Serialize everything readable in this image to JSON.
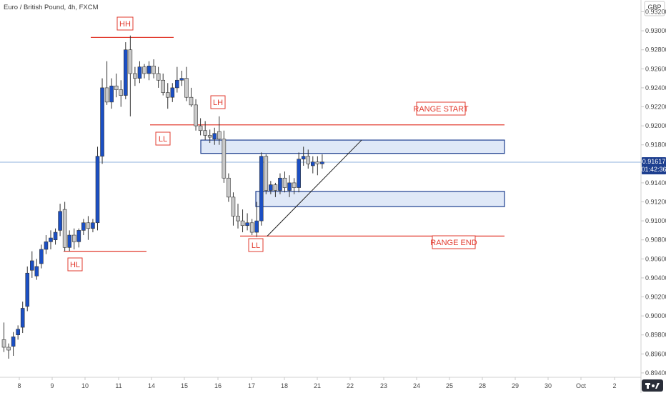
{
  "header": {
    "title": "Euro / British Pound, 4h, FXCM",
    "currency": "GBP"
  },
  "price_label": {
    "price": "0.91617",
    "countdown": "01:42:36"
  },
  "logo": {
    "name": "tradingview-logo-icon"
  },
  "colors": {
    "bull_fill": "#1b4fc4",
    "bear_fill": "#c9c9c9",
    "wick": "#333333",
    "annotation": "#e23b2f",
    "zone_fill": "#dfe8f7",
    "zone_border": "#1e3f8f",
    "price_line": "#8fb0dc",
    "price_tag": "#1e3f8f"
  },
  "chart_data": {
    "type": "candlestick",
    "title": "Euro / British Pound, 4h, FXCM",
    "x_tick_labels": [
      "8",
      "9",
      "10",
      "11",
      "14",
      "15",
      "16",
      "17",
      "18",
      "21",
      "22",
      "23",
      "24",
      "25",
      "28",
      "29",
      "30",
      "Oct",
      "2"
    ],
    "y_tick_labels": [
      "0.89400",
      "0.89600",
      "0.89800",
      "0.90000",
      "0.90200",
      "0.90400",
      "0.90600",
      "0.90800",
      "0.91000",
      "0.91200",
      "0.91400",
      "0.91600",
      "0.91800",
      "0.92000",
      "0.92200",
      "0.92400",
      "0.92600",
      "0.92800",
      "0.93000",
      "0.93200"
    ],
    "ylim": [
      0.893,
      0.933
    ],
    "candles": [
      [
        0.8975,
        0.8993,
        0.8962,
        0.8967
      ],
      [
        0.8967,
        0.8971,
        0.8955,
        0.8964
      ],
      [
        0.8968,
        0.8983,
        0.8958,
        0.8978
      ],
      [
        0.898,
        0.899,
        0.8975,
        0.8986
      ],
      [
        0.8988,
        0.9015,
        0.8982,
        0.9008
      ],
      [
        0.901,
        0.9052,
        0.9005,
        0.9045
      ],
      [
        0.9048,
        0.9068,
        0.904,
        0.9058
      ],
      [
        0.9042,
        0.906,
        0.9038,
        0.9052
      ],
      [
        0.9055,
        0.9075,
        0.905,
        0.907
      ],
      [
        0.907,
        0.9085,
        0.9065,
        0.9078
      ],
      [
        0.9078,
        0.909,
        0.907,
        0.9082
      ],
      [
        0.908,
        0.9092,
        0.9075,
        0.9088
      ],
      [
        0.909,
        0.9118,
        0.9084,
        0.911
      ],
      [
        0.9112,
        0.912,
        0.9068,
        0.9072
      ],
      [
        0.9072,
        0.909,
        0.9068,
        0.9085
      ],
      [
        0.9085,
        0.9092,
        0.907,
        0.9078
      ],
      [
        0.9078,
        0.9092,
        0.9072,
        0.909
      ],
      [
        0.909,
        0.9102,
        0.9085,
        0.9098
      ],
      [
        0.9098,
        0.9105,
        0.908,
        0.9092
      ],
      [
        0.9092,
        0.9102,
        0.9088,
        0.9098
      ],
      [
        0.9098,
        0.9178,
        0.909,
        0.9168
      ],
      [
        0.9168,
        0.925,
        0.916,
        0.924
      ],
      [
        0.924,
        0.9268,
        0.9222,
        0.9225
      ],
      [
        0.9225,
        0.925,
        0.9218,
        0.9242
      ],
      [
        0.9242,
        0.9255,
        0.923,
        0.9238
      ],
      [
        0.9238,
        0.9248,
        0.922,
        0.9232
      ],
      [
        0.9232,
        0.9288,
        0.9228,
        0.928
      ],
      [
        0.928,
        0.9295,
        0.921,
        0.9255
      ],
      [
        0.9255,
        0.9262,
        0.9242,
        0.925
      ],
      [
        0.925,
        0.9268,
        0.9245,
        0.9262
      ],
      [
        0.9262,
        0.9265,
        0.925,
        0.9255
      ],
      [
        0.9255,
        0.9268,
        0.9248,
        0.9263
      ],
      [
        0.9263,
        0.927,
        0.925,
        0.9255
      ],
      [
        0.9255,
        0.9262,
        0.924,
        0.9248
      ],
      [
        0.9248,
        0.9255,
        0.9232,
        0.9235
      ],
      [
        0.9235,
        0.9245,
        0.9218,
        0.923
      ],
      [
        0.923,
        0.9245,
        0.9225,
        0.924
      ],
      [
        0.924,
        0.9262,
        0.9235,
        0.9248
      ],
      [
        0.9248,
        0.9258,
        0.9242,
        0.925
      ],
      [
        0.925,
        0.9262,
        0.9226,
        0.923
      ],
      [
        0.923,
        0.924,
        0.922,
        0.9222
      ],
      [
        0.9222,
        0.9228,
        0.9195,
        0.92
      ],
      [
        0.92,
        0.9208,
        0.919,
        0.9195
      ],
      [
        0.9195,
        0.9205,
        0.9185,
        0.919
      ],
      [
        0.919,
        0.9196,
        0.9182,
        0.9188
      ],
      [
        0.9186,
        0.9198,
        0.918,
        0.9192
      ],
      [
        0.9194,
        0.921,
        0.918,
        0.9186
      ],
      [
        0.9186,
        0.9195,
        0.914,
        0.9145
      ],
      [
        0.9145,
        0.915,
        0.912,
        0.9125
      ],
      [
        0.9125,
        0.913,
        0.9095,
        0.9105
      ],
      [
        0.9105,
        0.9118,
        0.9092,
        0.91
      ],
      [
        0.91,
        0.9112,
        0.9088,
        0.9095
      ],
      [
        0.9095,
        0.9108,
        0.909,
        0.9098
      ],
      [
        0.9098,
        0.9102,
        0.9085,
        0.9088
      ],
      [
        0.9088,
        0.912,
        0.9083,
        0.91
      ],
      [
        0.91,
        0.9172,
        0.9095,
        0.9168
      ],
      [
        0.9168,
        0.917,
        0.9128,
        0.9132
      ],
      [
        0.9132,
        0.9142,
        0.9128,
        0.9138
      ],
      [
        0.9138,
        0.914,
        0.9125,
        0.9132
      ],
      [
        0.9132,
        0.915,
        0.9128,
        0.9145
      ],
      [
        0.9145,
        0.9152,
        0.913,
        0.9135
      ],
      [
        0.9132,
        0.9148,
        0.9125,
        0.914
      ],
      [
        0.914,
        0.9145,
        0.9128,
        0.9135
      ],
      [
        0.9135,
        0.9172,
        0.913,
        0.9165
      ],
      [
        0.9165,
        0.9178,
        0.9158,
        0.9168
      ],
      [
        0.9168,
        0.9175,
        0.9155,
        0.916
      ],
      [
        0.9158,
        0.9168,
        0.915,
        0.9162
      ],
      [
        0.9162,
        0.9168,
        0.9148,
        0.916
      ],
      [
        0.916,
        0.917,
        0.9155,
        0.9162
      ]
    ],
    "annotations": {
      "levels": [
        {
          "label": "HH",
          "price": 0.9293
        },
        {
          "label": "LL",
          "price": 0.9201
        },
        {
          "label": "LH",
          "price": 0.9201
        },
        {
          "label": "RANGE START",
          "price": 0.9201
        },
        {
          "label": "RANGE END",
          "price": 0.9084
        },
        {
          "label": "HL",
          "price": 0.9068
        },
        {
          "label": "LL",
          "price": 0.9084
        }
      ],
      "zones": [
        {
          "name": "upper-zone",
          "top": 0.9185,
          "bottom": 0.9171
        },
        {
          "name": "lower-zone",
          "top": 0.9131,
          "bottom": 0.9115
        }
      ],
      "trendline": {
        "from_price": 0.9084,
        "to_price": 0.9185
      }
    },
    "current_price": 0.91617
  }
}
